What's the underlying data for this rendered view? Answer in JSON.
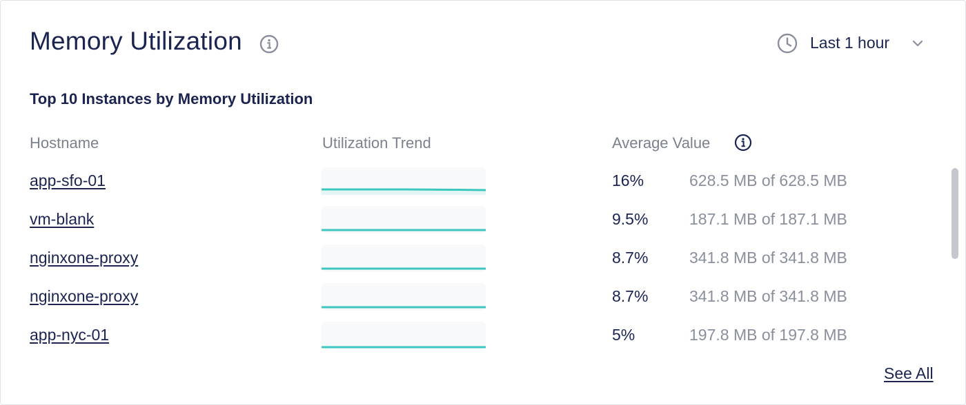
{
  "widget": {
    "title": "Memory Utilization",
    "time_range": "Last 1 hour",
    "subtitle": "Top 10 Instances by Memory Utilization",
    "see_all_label": "See All"
  },
  "table": {
    "columns": [
      "Hostname",
      "Utilization Trend",
      "Average Value"
    ],
    "rows": [
      {
        "hostname": "app-sfo-01",
        "average_pct": "16%",
        "memory": "628.5 MB of 628.5 MB"
      },
      {
        "hostname": "vm-blank",
        "average_pct": "9.5%",
        "memory": "187.1 MB of 187.1 MB"
      },
      {
        "hostname": "nginxone-proxy",
        "average_pct": "8.7%",
        "memory": "341.8 MB of 341.8 MB"
      },
      {
        "hostname": "nginxone-proxy",
        "average_pct": "8.7%",
        "memory": "341.8 MB of 341.8 MB"
      },
      {
        "hostname": "app-nyc-01",
        "average_pct": "5%",
        "memory": "197.8 MB of 197.8 MB"
      }
    ]
  },
  "icons": {
    "title_info": "info-icon",
    "time_range": "clock-icon",
    "dropdown": "chevron-down-icon",
    "average_info": "info-icon"
  },
  "colors": {
    "text_primary": "#1b2451",
    "text_secondary": "#7b818d",
    "sparkline": "#3cc8bf",
    "sparkline_fill": "#e3f5f4",
    "sparkline_bg": "#f8f9fb"
  }
}
